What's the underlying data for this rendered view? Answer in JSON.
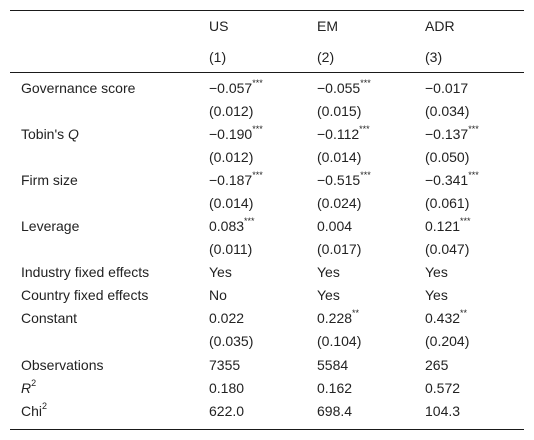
{
  "table": {
    "columns": [
      {
        "name": "US",
        "number": "(1)"
      },
      {
        "name": "EM",
        "number": "(2)"
      },
      {
        "name": "ADR",
        "number": "(3)"
      }
    ],
    "rows": [
      {
        "label": "Governance score",
        "cells": [
          {
            "value": "−0.057",
            "stars": "***",
            "se": "(0.012)"
          },
          {
            "value": "−0.055",
            "stars": "***",
            "se": "(0.015)"
          },
          {
            "value": "−0.017",
            "stars": "",
            "se": "(0.034)"
          }
        ]
      },
      {
        "label": "Tobin's ",
        "label_italic": "Q",
        "cells": [
          {
            "value": "−0.190",
            "stars": "***",
            "se": "(0.012)"
          },
          {
            "value": "−0.112",
            "stars": "***",
            "se": "(0.014)"
          },
          {
            "value": "−0.137",
            "stars": "***",
            "se": "(0.050)"
          }
        ]
      },
      {
        "label": "Firm size",
        "cells": [
          {
            "value": "−0.187",
            "stars": "***",
            "se": "(0.014)"
          },
          {
            "value": "−0.515",
            "stars": "***",
            "se": "(0.024)"
          },
          {
            "value": "−0.341",
            "stars": "***",
            "se": "(0.061)"
          }
        ]
      },
      {
        "label": "Leverage",
        "cells": [
          {
            "value": "0.083",
            "stars": "***",
            "se": "(0.011)"
          },
          {
            "value": "0.004",
            "stars": "",
            "se": "(0.017)"
          },
          {
            "value": "0.121",
            "stars": "***",
            "se": "(0.047)"
          }
        ]
      },
      {
        "label": "Industry fixed effects",
        "cells": [
          {
            "value": "Yes",
            "stars": ""
          },
          {
            "value": "Yes",
            "stars": ""
          },
          {
            "value": "Yes",
            "stars": ""
          }
        ]
      },
      {
        "label": "Country fixed effects",
        "cells": [
          {
            "value": "No",
            "stars": ""
          },
          {
            "value": "Yes",
            "stars": ""
          },
          {
            "value": "Yes",
            "stars": ""
          }
        ]
      },
      {
        "label": "Constant",
        "cells": [
          {
            "value": "0.022",
            "stars": "",
            "se": "(0.035)"
          },
          {
            "value": "0.228",
            "stars": "**",
            "se": "(0.104)"
          },
          {
            "value": "0.432",
            "stars": "**",
            "se": "(0.204)"
          }
        ]
      }
    ],
    "stats": [
      {
        "label": "Observations",
        "values": [
          "7355",
          "5584",
          "265"
        ]
      },
      {
        "label_italic": "R",
        "label_sup": "2",
        "values": [
          "0.180",
          "0.162",
          "0.572"
        ]
      },
      {
        "label": "Chi",
        "label_sup": "2",
        "values": [
          "622.0",
          "698.4",
          "104.3"
        ]
      }
    ]
  }
}
